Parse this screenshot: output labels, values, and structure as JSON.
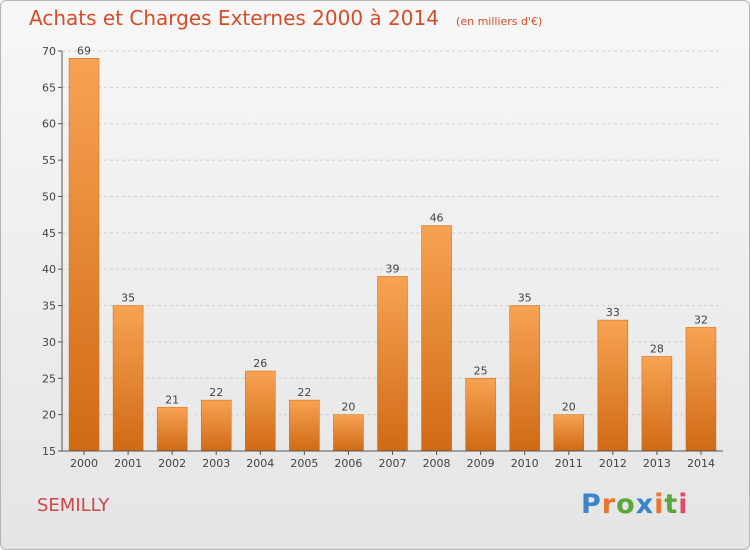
{
  "header": {
    "title": "Achats et Charges Externes 2000 à 2014",
    "unit": "(en milliers d'€)"
  },
  "city": "SEMILLY",
  "brand": {
    "text": "Proxiti",
    "letter_colors": [
      "#3a86c8",
      "#e8752a",
      "#5aa83c",
      "#3a86c8",
      "#e8752a",
      "#5aa83c",
      "#e04a6a"
    ]
  },
  "colors": {
    "title": "#d44d2a",
    "city": "#d0454a",
    "bar_light": "#f7a354",
    "bar_dark": "#d06a14"
  },
  "chart_data": {
    "type": "bar",
    "title": "Achats et Charges Externes 2000 à 2014",
    "subtitle": "(en milliers d'€)",
    "xlabel": "",
    "ylabel": "",
    "categories": [
      "2000",
      "2001",
      "2002",
      "2003",
      "2004",
      "2005",
      "2006",
      "2007",
      "2008",
      "2009",
      "2010",
      "2011",
      "2012",
      "2013",
      "2014"
    ],
    "values": [
      69,
      35,
      21,
      22,
      26,
      22,
      20,
      39,
      46,
      25,
      35,
      20,
      33,
      28,
      32
    ],
    "ylim": [
      15,
      70
    ],
    "yticks": [
      15,
      20,
      25,
      30,
      35,
      40,
      45,
      50,
      55,
      60,
      65,
      70
    ],
    "grid": true,
    "data_labels": true
  }
}
